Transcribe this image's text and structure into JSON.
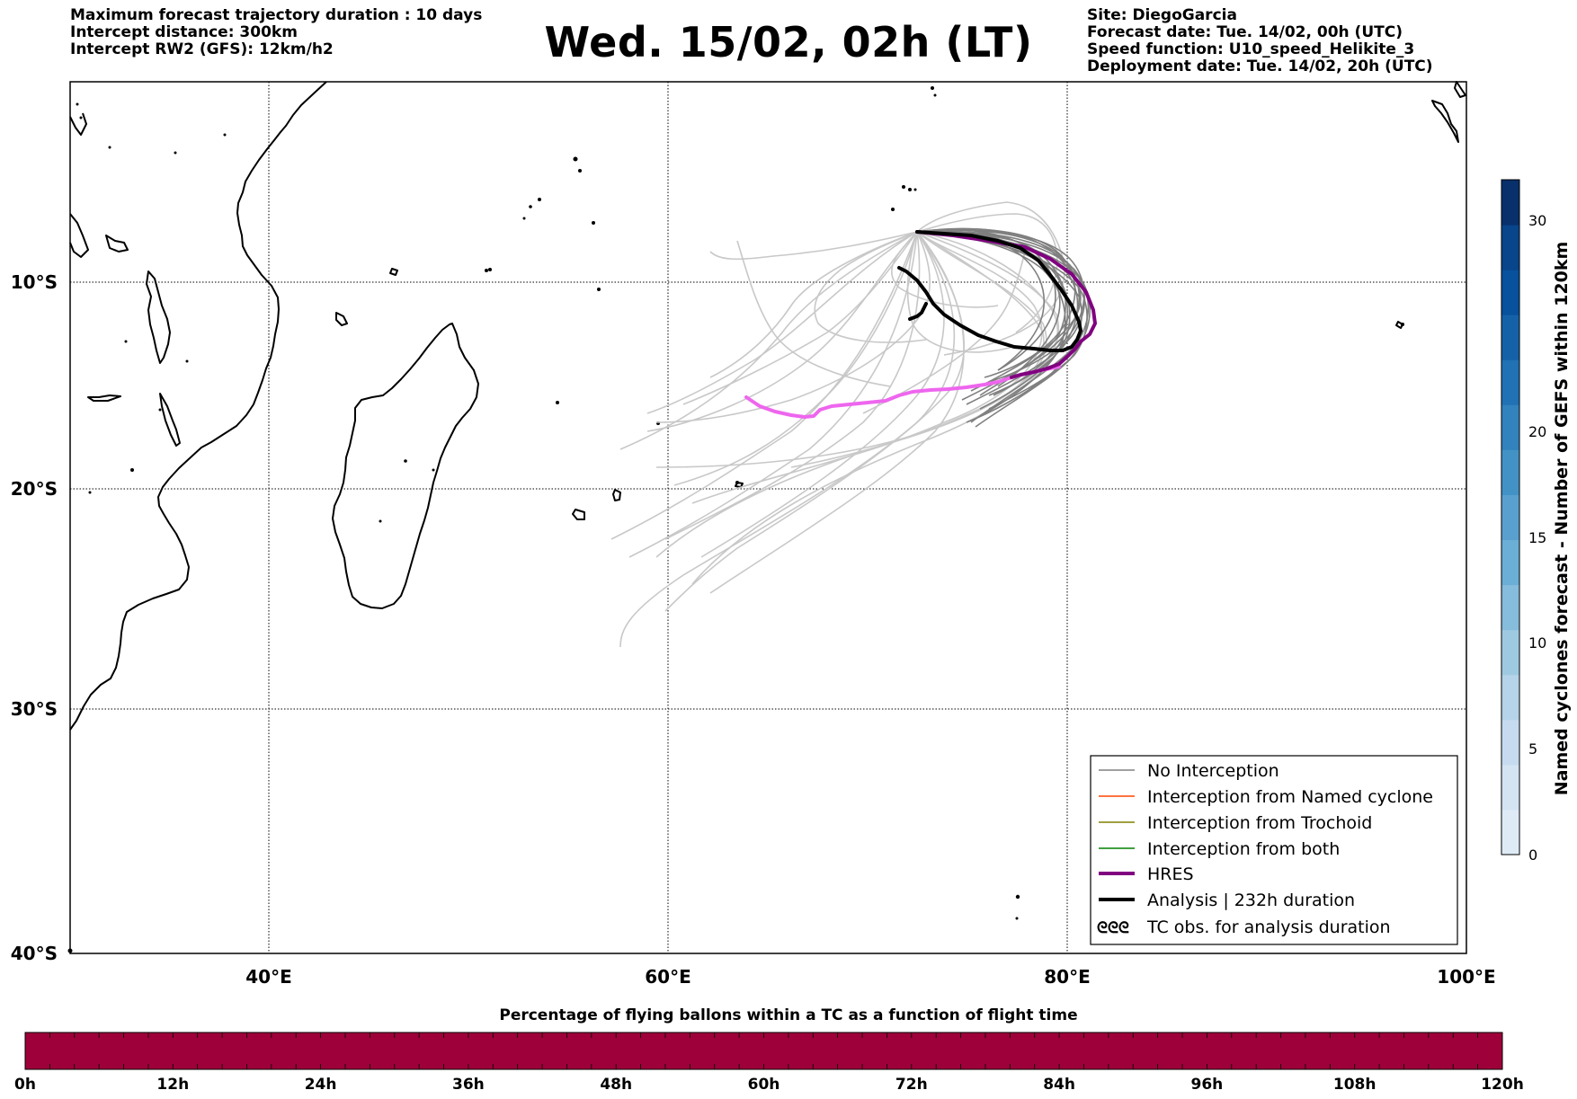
{
  "header_left": [
    "Maximum forecast trajectory duration : 10 days",
    "Intercept distance: 300km",
    "Intercept RW2 (GFS):  12km/h2"
  ],
  "header_right": [
    "Site: DiegoGarcia",
    "Forecast date: Tue. 14/02, 00h (UTC)",
    "Speed function: U10_speed_Helikite_3",
    "Deployment date: Tue. 14/02, 20h (UTC)"
  ],
  "title": "Wed. 15/02, 02h (LT)",
  "map": {
    "lon_ticks": [
      "40°E",
      "60°E",
      "80°E",
      "100°E"
    ],
    "lat_ticks": [
      "10°S",
      "20°S",
      "30°S",
      "40°S"
    ],
    "colors": {
      "no_interception": "#7f7f7f",
      "ensemble_light": "#c8c8c8",
      "hres_dark": "#800080",
      "hres_light": "#ee66ee",
      "analysis": "#000000",
      "coast": "#000000"
    }
  },
  "legend": [
    {
      "label": "No Interception",
      "color": "#808080",
      "style": "thin"
    },
    {
      "label": "Interception from Named cyclone",
      "color": "#ff4500",
      "style": "thin"
    },
    {
      "label": "Interception from Trochoid",
      "color": "#808000",
      "style": "thin"
    },
    {
      "label": "Interception from both",
      "color": "#008000",
      "style": "thin"
    },
    {
      "label": "HRES",
      "color": "#800080",
      "style": "thick"
    },
    {
      "label": "Analysis | 232h duration",
      "color": "#000000",
      "style": "thick"
    },
    {
      "label": "TC obs. for analysis duration",
      "color": "#000000",
      "style": "symbol",
      "symbol": "ᘓᘓᘓ"
    }
  ],
  "colorbar_right": {
    "label": "Named cyclones forecast - Number of GEFS within 120km",
    "ticks": [
      "0",
      "5",
      "10",
      "15",
      "20",
      "30"
    ],
    "colors": [
      "#deebf7",
      "#d4e4f3",
      "#c6dbef",
      "#b5d3e9",
      "#9ecae1",
      "#86bcdc",
      "#6baed6",
      "#5aa0ce",
      "#4292c6",
      "#3282bd",
      "#2171b5",
      "#1561a8",
      "#08519c",
      "#08458a",
      "#08306b"
    ]
  },
  "colorbar_bottom": {
    "title": "Percentage of flying ballons within a TC as a function of flight time",
    "ticks": [
      "0h",
      "12h",
      "24h",
      "36h",
      "48h",
      "60h",
      "72h",
      "84h",
      "96h",
      "108h",
      "120h"
    ],
    "fill_color": "#9e003a"
  }
}
